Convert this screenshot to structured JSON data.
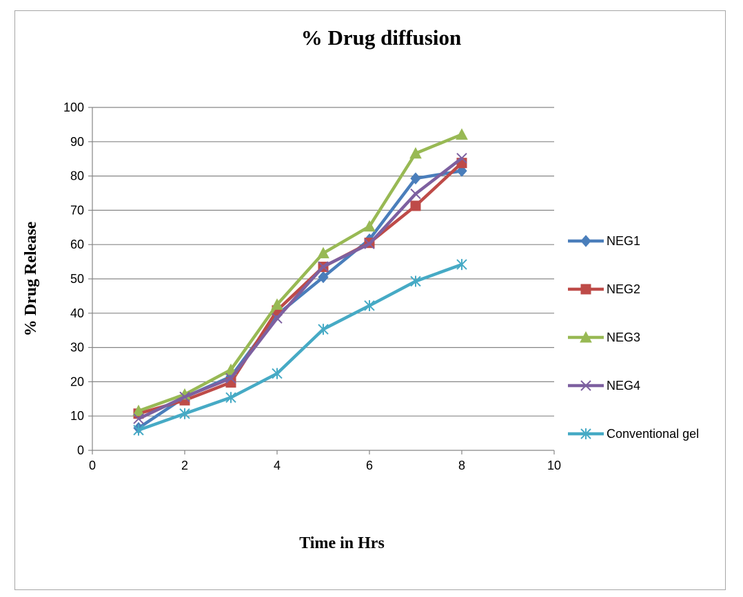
{
  "chart_data": {
    "type": "line",
    "title": "% Drug diffusion",
    "xlabel": "Time in Hrs",
    "ylabel": "% Drug Release",
    "xlim": [
      0,
      10
    ],
    "ylim": [
      0,
      100
    ],
    "x_ticks": [
      "0",
      "2",
      "4",
      "6",
      "8",
      "10"
    ],
    "y_ticks": [
      "0",
      "10",
      "20",
      "30",
      "40",
      "50",
      "60",
      "70",
      "80",
      "90",
      "100"
    ],
    "grid": "horizontal",
    "legend_position": "right",
    "x": [
      1,
      2,
      3,
      4,
      5,
      6,
      7,
      8
    ],
    "series": [
      {
        "name": "NEG1",
        "color": "#4a7ebb",
        "marker": "diamond",
        "values": [
          6.5,
          15.5,
          21.5,
          39.5,
          50.5,
          61.5,
          79.3,
          81.5
        ]
      },
      {
        "name": "NEG2",
        "color": "#be4b48",
        "marker": "square",
        "values": [
          10.7,
          14.6,
          19.8,
          40.8,
          53.5,
          60.5,
          71.3,
          83.8
        ]
      },
      {
        "name": "NEG3",
        "color": "#98b954",
        "marker": "triangle",
        "values": [
          11.5,
          16.3,
          23.5,
          42.5,
          57.5,
          65.3,
          86.6,
          92.1
        ]
      },
      {
        "name": "NEG4",
        "color": "#7d60a0",
        "marker": "x",
        "values": [
          9.2,
          15.6,
          21.0,
          38.5,
          53.6,
          60.2,
          74.8,
          85.2
        ]
      },
      {
        "name": "Conventional gel",
        "color": "#46aac5",
        "marker": "star",
        "values": [
          5.9,
          10.7,
          15.4,
          22.4,
          35.3,
          42.2,
          49.3,
          54.2
        ]
      }
    ]
  }
}
